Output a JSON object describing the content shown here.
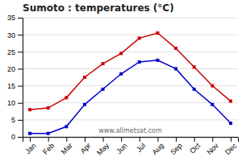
{
  "chart_data": {
    "type": "line",
    "title": "Sumoto : temperatures (°C)",
    "categories": [
      "Jan",
      "Feb",
      "Mar",
      "Apr",
      "May",
      "Jun",
      "Jul",
      "Aug",
      "Sep",
      "Oct",
      "Nov",
      "Dec"
    ],
    "series": [
      {
        "color": "#cc0000",
        "marker": "square",
        "line_style": "solid",
        "values": [
          8.0,
          8.5,
          11.5,
          17.5,
          21.5,
          24.5,
          29.0,
          30.5,
          26.0,
          20.5,
          15.0,
          10.5
        ]
      },
      {
        "color": "#0000cc",
        "marker": "square",
        "line_style": "solid",
        "values": [
          1.0,
          1.0,
          3.0,
          9.5,
          14.0,
          18.5,
          22.0,
          22.5,
          20.0,
          14.0,
          9.5,
          4.0
        ]
      }
    ],
    "ylim": [
      0,
      35
    ],
    "yticks": [
      0,
      5,
      10,
      15,
      20,
      25,
      30,
      35
    ],
    "grid": true,
    "annotations": [
      "www.allmetsat.com"
    ]
  }
}
